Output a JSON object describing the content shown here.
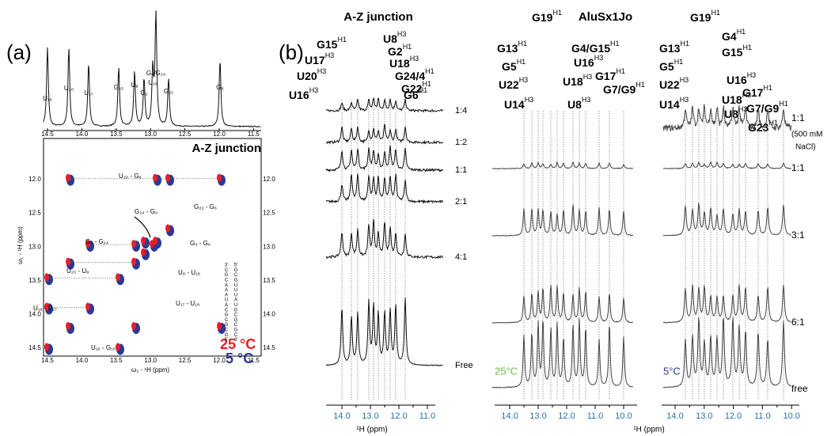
{
  "panel_a": {
    "label": "(a)",
    "title": "A-Z junction",
    "peaks": [
      "U₁₆",
      "U₂₀",
      "U₁₇",
      "G₁₅",
      "U₈",
      "G₂",
      "U₁₈",
      "G₄/G₂₄",
      "G₂₂",
      "G₆"
    ],
    "x_ticks": [
      "14.5",
      "14.0",
      "13.5",
      "13.0",
      "12.5",
      "12.0",
      "11.5"
    ],
    "y_ticks": [
      "12.0",
      "12.5",
      "13.0",
      "13.5",
      "14.0",
      "14.5"
    ],
    "x_axis_label": "ω₂ - ¹H (ppm)",
    "y_axis_label": "ω₁ - ¹H (ppm)",
    "cross_peaks": [
      "U₂₀ - G₆",
      "G₂₄ - G₄",
      "G₂₂ - G₆",
      "G₂ - G₂₄",
      "G₄ - G₆",
      "U₂₀ - U₈",
      "U₈ - U₁₈",
      "U₁₆ - U₁₇",
      "U₁₇ - U₁₈",
      "U₁₆ - G₁₅"
    ],
    "legend": [
      "25 °C",
      "5 °C"
    ],
    "strand_left": [
      "3'",
      "C",
      "G",
      "C",
      "A",
      "A",
      "A",
      "U",
      "A",
      "C",
      "G",
      "C",
      "G",
      "C",
      "G",
      "5'"
    ],
    "strand_right": [
      "5'",
      "G",
      "C",
      "G",
      "U",
      "U",
      "U",
      "A",
      "U",
      "G",
      "C",
      "G",
      "C",
      "G",
      "C",
      "3'"
    ]
  },
  "panel_b": {
    "label": "(b)",
    "az": {
      "title": "A-Z junction",
      "peaks": [
        {
          "name": "G15",
          "atom": "H1"
        },
        {
          "name": "U8",
          "atom": "H3"
        },
        {
          "name": "G2",
          "atom": "H1"
        },
        {
          "name": "U17",
          "atom": "H3"
        },
        {
          "name": "U18",
          "atom": "H3"
        },
        {
          "name": "U20",
          "atom": "H3"
        },
        {
          "name": "G24/4",
          "atom": "H1"
        },
        {
          "name": "G22",
          "atom": "H1"
        },
        {
          "name": "U16",
          "atom": "H3"
        },
        {
          "name": "G6",
          "atom": "H1"
        }
      ],
      "ratios": [
        "1:4",
        "1:2",
        "1:1",
        "2:1",
        "4:1",
        "Free"
      ],
      "x_ticks": [
        "14.0",
        "13.0",
        "12.0",
        "11.0"
      ]
    },
    "alu": {
      "title": "AluSx1Jo",
      "peaks_25": [
        {
          "name": "G19",
          "atom": "H1"
        },
        {
          "name": "G13",
          "atom": "H1"
        },
        {
          "name": "G4/G15",
          "atom": "H1"
        },
        {
          "name": "G5",
          "atom": "H1"
        },
        {
          "name": "U16",
          "atom": "H3"
        },
        {
          "name": "U22",
          "atom": "H3"
        },
        {
          "name": "U18",
          "atom": "H3"
        },
        {
          "name": "G17",
          "atom": "H1"
        },
        {
          "name": "U14",
          "atom": "H3"
        },
        {
          "name": "U8",
          "atom": "H3"
        },
        {
          "name": "G7/G9",
          "atom": "H1"
        }
      ],
      "peaks_5": [
        {
          "name": "G19",
          "atom": "H1"
        },
        {
          "name": "G13",
          "atom": "H1"
        },
        {
          "name": "G4",
          "atom": "H1"
        },
        {
          "name": "G15",
          "atom": "H1"
        },
        {
          "name": "G5",
          "atom": "H1"
        },
        {
          "name": "U16",
          "atom": "H3"
        },
        {
          "name": "U22",
          "atom": "H3"
        },
        {
          "name": "U18",
          "atom": "H3"
        },
        {
          "name": "G17",
          "atom": "H1"
        },
        {
          "name": "U14",
          "atom": "H3"
        },
        {
          "name": "U8",
          "atom": "H3"
        },
        {
          "name": "G7/G9",
          "atom": "H1"
        },
        {
          "name": "G23",
          "atom": "H1"
        }
      ],
      "ratios": [
        "1:1",
        "(500 mM",
        "NaCl)",
        "1:1",
        "3:1",
        "6:1",
        "free"
      ],
      "temp_25": "25°C",
      "temp_5": "5°C",
      "x_ticks_25": [
        "14.0",
        "13.0",
        "12.0",
        "11.0",
        "10.0"
      ],
      "x_ticks_5": [
        "14.0",
        "13.0",
        "12.0",
        "11.0",
        "10.0"
      ]
    },
    "x_axis_label": "¹H (ppm)"
  }
}
